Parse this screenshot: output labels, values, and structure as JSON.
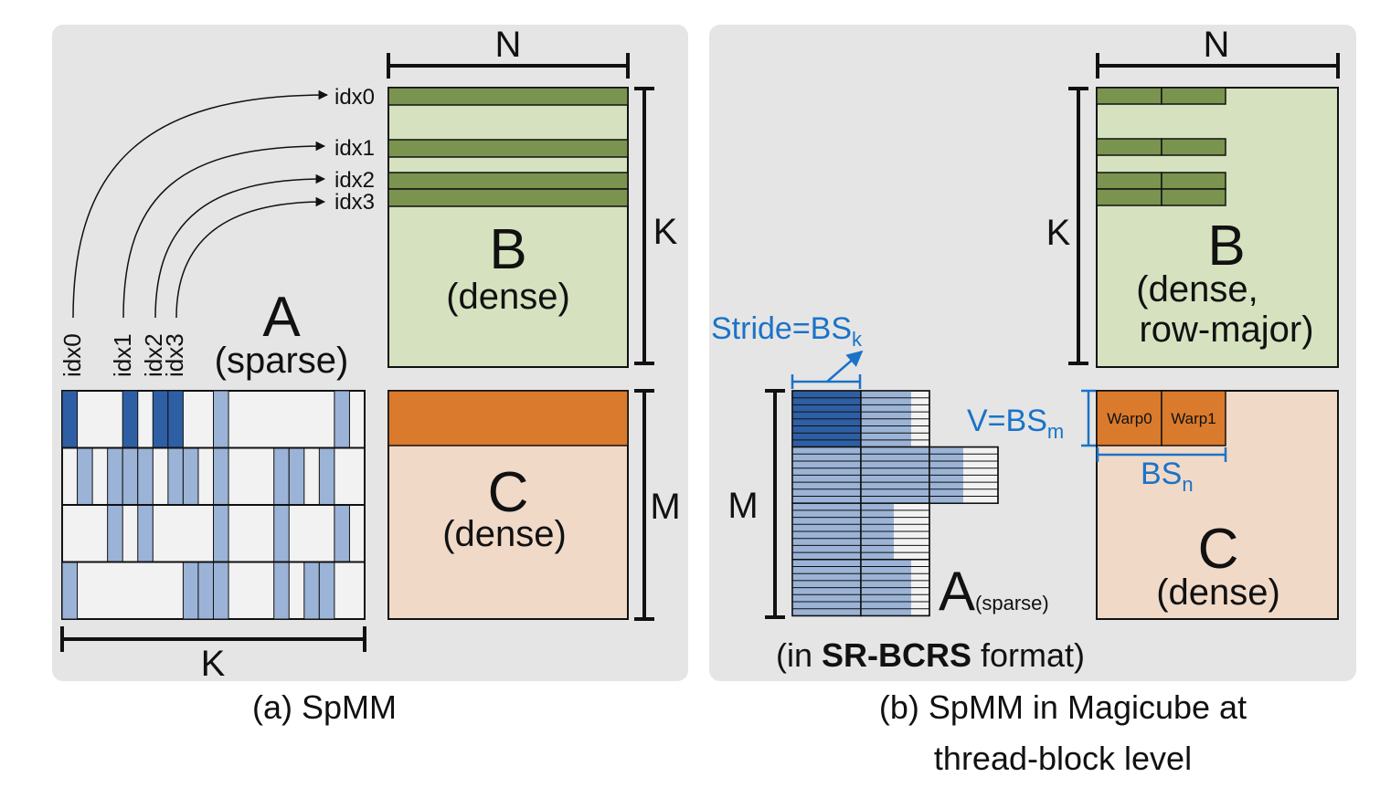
{
  "colors": {
    "panel_bg": "#e5e5e5",
    "b_fill": "#d6e2bf",
    "b_row": "#7a9450",
    "c_fill": "#f1d9c8",
    "c_row": "#d97a2c",
    "nz_dark": "#2e5fa4",
    "nz_light": "#9bb3d6",
    "zero": "#f2f2f2",
    "annot_blue": "#1a73c8",
    "text": "#111111"
  },
  "panel_a": {
    "caption": "(a) SpMM",
    "b_letter": "B",
    "b_sub": "(dense)",
    "c_letter": "C",
    "c_sub": "(dense)",
    "a_letter": "A",
    "a_sub": "(sparse)",
    "dim_n": "N",
    "dim_k_right": "K",
    "dim_m": "M",
    "dim_k_bottom": "K",
    "idx_labels": [
      "idx0",
      "idx1",
      "idx2",
      "idx3"
    ],
    "idx_vertical": [
      "idx0",
      "idx1",
      "idx2",
      "idx3"
    ]
  },
  "panel_b": {
    "caption_line1": "(b) SpMM in Magicube at",
    "caption_line2": "thread-block level",
    "b_letter": "B",
    "b_sub1": "(dense,",
    "b_sub2": "row-major)",
    "c_letter": "C",
    "c_sub": "(dense)",
    "a_letter": "A",
    "a_sub": "(sparse)",
    "format_pre": "(in ",
    "format_bold": "SR-BCRS",
    "format_post": " format)",
    "stride_text": "Stride=BS",
    "stride_sub": "k",
    "v_text": "V=BS",
    "v_sub": "m",
    "bsn_text": "BS",
    "bsn_sub": "n",
    "warp0": "Warp0",
    "warp1": "Warp1",
    "dim_n": "N",
    "dim_k": "K",
    "dim_m": "M"
  }
}
